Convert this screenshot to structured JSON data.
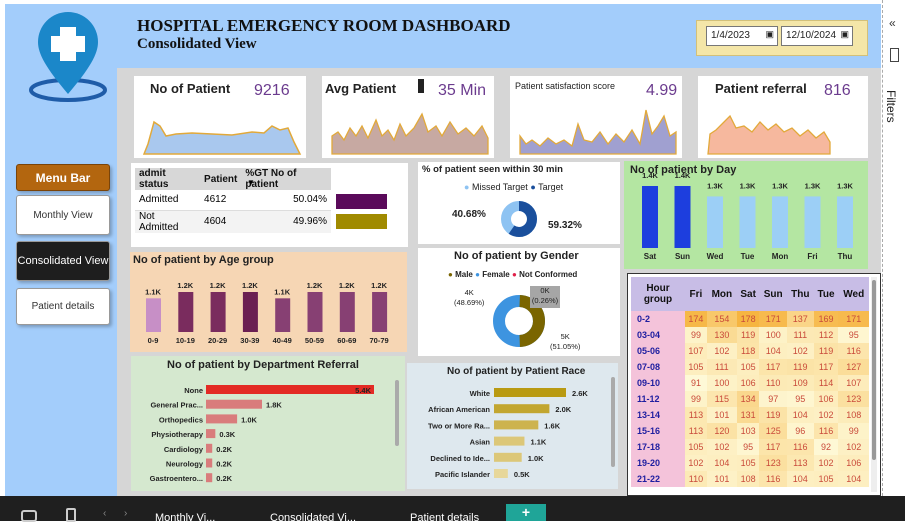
{
  "header": {
    "title": "HOSPITAL EMERGENCY ROOM DASHBOARD",
    "subtitle": "Consolidated View",
    "date_from": "1/4/2023",
    "date_to": "12/10/2024",
    "calendar_icon": "calendar-icon"
  },
  "colors": {
    "header_bg": "#a3cdfb",
    "accent_purple": "#5a0a5a",
    "accent_gold": "#a08a00",
    "sparkline": "#e2a93a"
  },
  "nav": {
    "menu": "Menu Bar",
    "monthly": "Monthly View",
    "consolidated": "Consolidated View",
    "details": "Patient details"
  },
  "kpis": [
    {
      "label": "No of Patient",
      "value": "9216",
      "chart_fill": "#a9c8ee"
    },
    {
      "label": "Avg Patient",
      "value": "35 Min",
      "chart_fill": "#c7a9a2"
    },
    {
      "label": "Patient satisfaction score",
      "value": "4.99",
      "chart_fill": "#a0a0d0"
    },
    {
      "label": "Patient referral",
      "value": "816",
      "chart_fill": "#f6b89e"
    }
  ],
  "admit": {
    "headers": [
      "admit status",
      "Patient",
      "%GT No of patient"
    ],
    "rows": [
      [
        "Admitted",
        "4612",
        "50.04%"
      ],
      [
        "Not Admitted",
        "4604",
        "49.96%"
      ]
    ]
  },
  "seen30": {
    "title": "% of patient seen within 30 min",
    "legend": [
      "Missed Target",
      "Target"
    ],
    "left": "40.68%",
    "right": "59.32%"
  },
  "gender": {
    "title": "No of patient by Gender",
    "legend": [
      "Male",
      "Female",
      "Not Conformed"
    ],
    "male": "4K\n(48.69%)",
    "female": "5K\n(51.05%)",
    "nc": "0K\n(0.26%)",
    "male_val": "4K",
    "male_pct": "(48.69%)",
    "female_val": "5K",
    "female_pct": "(51.05%)",
    "nc_val": "0K",
    "nc_pct": "(0.26%)"
  },
  "day": {
    "title": "No of patient by Day"
  },
  "age": {
    "title": "No of patient by Age group"
  },
  "dept": {
    "title": "No of patient by Department Referral"
  },
  "race": {
    "title": "No of patient by Patient Race"
  },
  "heatmap": {
    "corner": "Hour group",
    "cols": [
      "Fri",
      "Mon",
      "Sat",
      "Sun",
      "Thu",
      "Tue",
      "Wed"
    ],
    "rows": [
      [
        "0-2",
        "174",
        "154",
        "178",
        "171",
        "137",
        "169",
        "171"
      ],
      [
        "03-04",
        "99",
        "130",
        "119",
        "100",
        "111",
        "112",
        "95"
      ],
      [
        "05-06",
        "107",
        "102",
        "118",
        "104",
        "102",
        "119",
        "116"
      ],
      [
        "07-08",
        "105",
        "111",
        "105",
        "117",
        "119",
        "117",
        "127"
      ],
      [
        "09-10",
        "91",
        "100",
        "106",
        "110",
        "109",
        "114",
        "107"
      ],
      [
        "11-12",
        "99",
        "115",
        "134",
        "97",
        "95",
        "106",
        "123"
      ],
      [
        "13-14",
        "113",
        "101",
        "131",
        "119",
        "104",
        "102",
        "108"
      ],
      [
        "15-16",
        "113",
        "120",
        "103",
        "125",
        "96",
        "116",
        "99"
      ],
      [
        "17-18",
        "105",
        "102",
        "95",
        "117",
        "116",
        "92",
        "102"
      ],
      [
        "19-20",
        "102",
        "104",
        "105",
        "123",
        "113",
        "102",
        "106"
      ],
      [
        "21-22",
        "110",
        "101",
        "108",
        "116",
        "104",
        "105",
        "104"
      ]
    ]
  },
  "filters": "Filters",
  "tabs": [
    "Monthly Vi...",
    "Consolidated Vi...",
    "Patient details"
  ],
  "add_tab": "+",
  "chart_data": [
    {
      "type": "bar",
      "title": "No of patient by Day",
      "categories": [
        "Sat",
        "Sun",
        "Wed",
        "Tue",
        "Mon",
        "Fri",
        "Thu"
      ],
      "values": [
        1.4,
        1.4,
        1.3,
        1.3,
        1.3,
        1.3,
        1.3
      ],
      "labels": [
        "1.4K",
        "1.4K",
        "1.3K",
        "1.3K",
        "1.3K",
        "1.3K",
        "1.3K"
      ],
      "highlighted": [
        "Sat",
        "Sun"
      ]
    },
    {
      "type": "bar",
      "title": "No of patient by Age group",
      "categories": [
        "0-9",
        "10-19",
        "20-29",
        "30-39",
        "40-49",
        "50-59",
        "60-69",
        "70-79"
      ],
      "values": [
        1.1,
        1.2,
        1.2,
        1.2,
        1.1,
        1.2,
        1.2,
        1.2
      ],
      "labels": [
        "1.1K",
        "1.2K",
        "1.2K",
        "1.2K",
        "1.1K",
        "1.2K",
        "1.2K",
        "1.2K"
      ]
    },
    {
      "type": "bar",
      "title": "No of patient by Department Referral",
      "categories": [
        "None",
        "General Prac...",
        "Orthopedics",
        "Physiotherapy",
        "Cardiology",
        "Neurology",
        "Gastroentero..."
      ],
      "values": [
        5.4,
        1.8,
        1.0,
        0.3,
        0.2,
        0.2,
        0.2
      ],
      "labels": [
        "5.4K",
        "1.8K",
        "1.0K",
        "0.3K",
        "0.2K",
        "0.2K",
        "0.2K"
      ]
    },
    {
      "type": "bar",
      "title": "No of patient by Patient Race",
      "categories": [
        "White",
        "African American",
        "Two or More Ra...",
        "Asian",
        "Declined to Ide...",
        "Pacific Islander"
      ],
      "values": [
        2.6,
        2.0,
        1.6,
        1.1,
        1.0,
        0.5
      ],
      "labels": [
        "2.6K",
        "2.0K",
        "1.6K",
        "1.1K",
        "1.0K",
        "0.5K"
      ]
    },
    {
      "type": "pie",
      "title": "% of patient seen within 30 min",
      "categories": [
        "Missed Target",
        "Target"
      ],
      "values": [
        40.68,
        59.32
      ]
    },
    {
      "type": "pie",
      "title": "No of patient by Gender",
      "categories": [
        "Male",
        "Female",
        "Not Conformed"
      ],
      "values": [
        48.69,
        51.05,
        0.26
      ]
    }
  ]
}
